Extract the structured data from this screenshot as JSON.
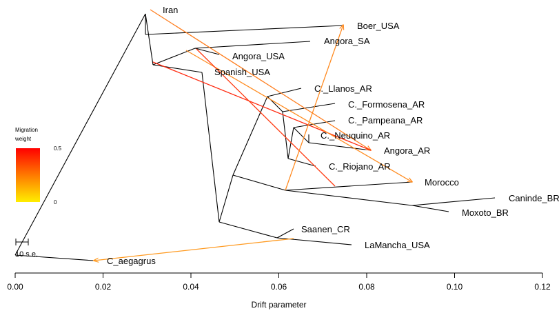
{
  "x_axis": {
    "label": "Drift parameter",
    "ticks": [
      "0.00",
      "0.02",
      "0.04",
      "0.06",
      "0.08",
      "0.10",
      "0.12"
    ]
  },
  "legend": {
    "title_line1": "Migration",
    "title_line2": "weight",
    "max_label": "0.5",
    "min_label": "0",
    "color_high": "#ff0000",
    "color_low": "#ffee00"
  },
  "scale_bar_label": "10 s.e.",
  "taxa": {
    "iran": "Iran",
    "boer_usa": "Boer_USA",
    "angora_sa": "Angora_SA",
    "angora_usa": "Angora_USA",
    "spanish_usa": "Spanish_USA",
    "llanos_ar": "C._Llanos_AR",
    "formosena_ar": "C._Formosena_AR",
    "pampeana_ar": "C._Pampeana_AR",
    "neuquino_ar": "C._Neuquino_AR",
    "angora_ar": "Angora_AR",
    "riojano_ar": "C._Riojano_AR",
    "morocco": "Morocco",
    "caninde_br": "Caninde_BR",
    "moxoto_br": "Moxoto_BR",
    "saanen_cr": "Saanen_CR",
    "lamancha_usa": "LaMancha_USA",
    "c_aegagrus": "C_aegagrus"
  },
  "migration_colors": {
    "high": "#ff1a00",
    "mid": "#ff5a10",
    "low": "#ff9a20"
  }
}
